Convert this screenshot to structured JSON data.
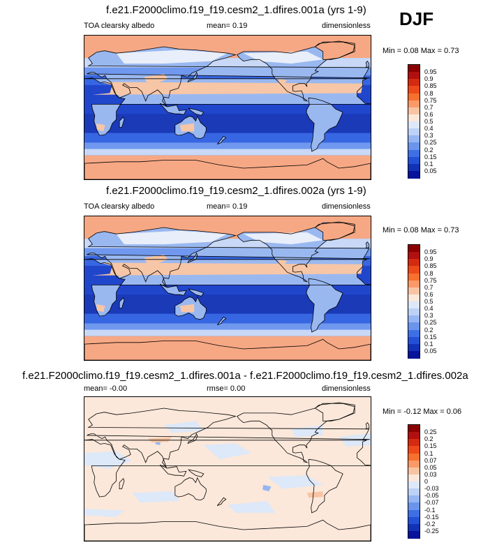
{
  "season": "DJF",
  "panels": [
    {
      "title": "f.e21.F2000climo.f19_f19.cesm2_1.dfires.001a (yrs 1-9)",
      "left_label": "TOA clearsky albedo",
      "mid_label": "mean=  0.19",
      "right_label": "dimensionless",
      "minmax": "Min =  0.08 Max =  0.73",
      "levels": [
        "0.95",
        "0.9",
        "0.85",
        "0.8",
        "0.75",
        "0.7",
        "0.6",
        "0.5",
        "0.4",
        "0.3",
        "0.25",
        "0.2",
        "0.15",
        "0.1",
        "0.05"
      ],
      "colors": [
        "#8b0000",
        "#b01010",
        "#d42a10",
        "#ec4a1a",
        "#f6702e",
        "#fb9a68",
        "#f8c4a4",
        "#fbe8da",
        "#dde8f8",
        "#bdd2f6",
        "#95b6f2",
        "#6b94ec",
        "#3f6fe4",
        "#2450d6",
        "#1232b6",
        "#06139a"
      ]
    },
    {
      "title": "f.e21.F2000climo.f19_f19.cesm2_1.dfires.002a (yrs 1-9)",
      "left_label": "TOA clearsky albedo",
      "mid_label": "mean=  0.19",
      "right_label": "dimensionless",
      "minmax": "Min =  0.08 Max =  0.73",
      "levels": [
        "0.95",
        "0.9",
        "0.85",
        "0.8",
        "0.75",
        "0.7",
        "0.6",
        "0.5",
        "0.4",
        "0.3",
        "0.25",
        "0.2",
        "0.15",
        "0.1",
        "0.05"
      ],
      "colors": [
        "#8b0000",
        "#b01010",
        "#d42a10",
        "#ec4a1a",
        "#f6702e",
        "#fb9a68",
        "#f8c4a4",
        "#fbe8da",
        "#dde8f8",
        "#bdd2f6",
        "#95b6f2",
        "#6b94ec",
        "#3f6fe4",
        "#2450d6",
        "#1232b6",
        "#06139a"
      ]
    },
    {
      "title": "f.e21.F2000climo.f19_f19.cesm2_1.dfires.001a - f.e21.F2000climo.f19_f19.cesm2_1.dfires.002a",
      "left_label": "mean=  -0.00",
      "mid_label": "rmse=  0.00",
      "right_label": "dimensionless",
      "minmax": "Min =  -0.12 Max =  0.06",
      "levels": [
        "0.25",
        "0.2",
        "0.15",
        "0.1",
        "0.07",
        "0.05",
        "0.03",
        "0",
        "-0.03",
        "-0.05",
        "-0.07",
        "-0.1",
        "-0.15",
        "-0.2",
        "-0.25"
      ],
      "colors": [
        "#8b0000",
        "#b01010",
        "#d42a10",
        "#ec4a1a",
        "#f6702e",
        "#fb9a68",
        "#f8c4a4",
        "#fbe8da",
        "#dde8f8",
        "#bdd2f6",
        "#95b6f2",
        "#6b94ec",
        "#3f6fe4",
        "#2450d6",
        "#1232b6",
        "#06139a"
      ]
    }
  ],
  "palettes": {
    "albedo": {
      "polar": "#f6a884",
      "high": "#c8d8f6",
      "mid": "#6f98ee",
      "subtrop": "#3766e2",
      "trop": "#2046cc",
      "deep": "#1a3ab8",
      "land_light": "#e8eefa",
      "land_mid": "#9ab8f0",
      "desert": "#f7c6a6",
      "coast": "#000000"
    },
    "diff": {
      "base": "#fbe8da",
      "neg": "#dde8f8",
      "negstrong": "#95b6f2",
      "pos": "#f8c4a4",
      "coast": "#000000"
    }
  }
}
